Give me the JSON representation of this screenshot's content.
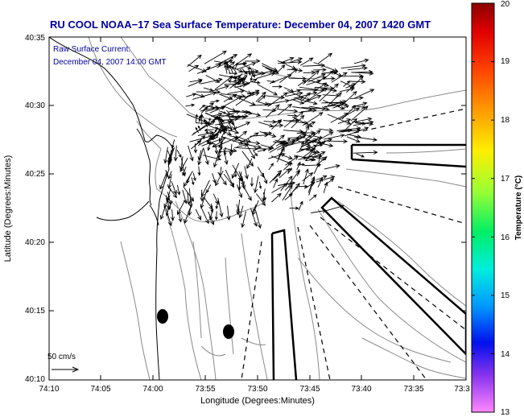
{
  "title": "RU COOL  NOAA−17  Sea Surface Temperature:  December 04, 2007 1420 GMT",
  "subtitle_line1": "Raw Surface Current:",
  "subtitle_line2": "December 04, 2007 14:00 GMT",
  "xlabel": "Longitude (Degrees:Minutes)",
  "ylabel": "Latitude (Degrees:Minutes)",
  "x_ticks": [
    "74:10",
    "74:05",
    "74:00",
    "73:55",
    "73:50",
    "73:45",
    "73:40",
    "73:35",
    "73:3"
  ],
  "y_ticks": [
    "40:35",
    "40:30",
    "40:25",
    "40:20",
    "40:15",
    "40:10"
  ],
  "scale_label": "50 cm/s",
  "colorbar": {
    "label": "Temperature (°C)",
    "ticks": [
      "20",
      "19",
      "18",
      "17",
      "16",
      "15",
      "14",
      "13"
    ],
    "min": 13,
    "max": 20
  },
  "colors": {
    "title": "#0000a0",
    "arrows": "#000000",
    "contours": "#888888"
  }
}
